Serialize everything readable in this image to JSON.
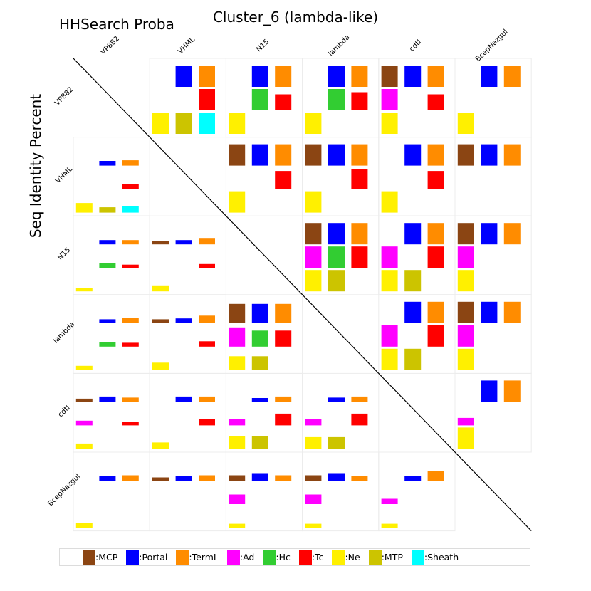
{
  "title": "Cluster_6 (lambda-like)",
  "corner_label": "HHSearch Proba",
  "ylabel": "Seq Identity Percent",
  "legend": [
    {
      "name": "MCP",
      "label": ":MCP",
      "color": "#8B4513"
    },
    {
      "name": "Portal",
      "label": ":Portal",
      "color": "#0000FF"
    },
    {
      "name": "TermL",
      "label": ":TermL",
      "color": "#FF8C00"
    },
    {
      "name": "Ad",
      "label": ":Ad",
      "color": "#FF00FF"
    },
    {
      "name": "Hc",
      "label": ":Hc",
      "color": "#32CD32"
    },
    {
      "name": "Tc",
      "label": ":Tc",
      "color": "#FF0000"
    },
    {
      "name": "Ne",
      "label": ":Ne",
      "color": "#FFF000"
    },
    {
      "name": "MTP",
      "label": ":MTP",
      "color": "#CCC400"
    },
    {
      "name": "Sheath",
      "label": ":Sheath",
      "color": "#00FFFF"
    }
  ],
  "chart_data": {
    "type": "heatmap",
    "title": "Cluster_6 (lambda-like)",
    "upper_triangle_metric": "HHSearch Proba",
    "lower_triangle_metric": "Seq Identity Percent",
    "phages": [
      "VP882",
      "VHML",
      "N15",
      "lambda",
      "cdtI",
      "BcepNazgul"
    ],
    "grid_slots": [
      [
        "MCP",
        "Portal",
        "TermL"
      ],
      [
        "Ad",
        "Hc",
        "Tc"
      ],
      [
        "Ne",
        "MTP",
        "Sheath"
      ]
    ],
    "cells": [
      {
        "row": "VP882",
        "col": "VHML",
        "values": {
          "Portal": 1.0,
          "TermL": 1.0,
          "Tc": 1.0,
          "Ne": 1.0,
          "MTP": 1.0,
          "Sheath": 1.0
        }
      },
      {
        "row": "VP882",
        "col": "N15",
        "values": {
          "Portal": 1.0,
          "TermL": 1.0,
          "Hc": 1.0,
          "Tc": 0.75,
          "Ne": 1.0
        }
      },
      {
        "row": "VP882",
        "col": "lambda",
        "values": {
          "Portal": 1.0,
          "TermL": 1.0,
          "Hc": 1.0,
          "Tc": 0.85,
          "Ne": 1.0
        }
      },
      {
        "row": "VP882",
        "col": "cdtI",
        "values": {
          "MCP": 1.0,
          "Portal": 1.0,
          "TermL": 1.0,
          "Ad": 1.0,
          "Tc": 0.75,
          "Ne": 1.0
        }
      },
      {
        "row": "VP882",
        "col": "BcepNazgul",
        "values": {
          "Portal": 1.0,
          "TermL": 1.0,
          "Ne": 1.0
        }
      },
      {
        "row": "VHML",
        "col": "N15",
        "values": {
          "MCP": 1.0,
          "Portal": 1.0,
          "TermL": 1.0,
          "Tc": 0.85,
          "Ne": 1.0
        }
      },
      {
        "row": "VHML",
        "col": "lambda",
        "values": {
          "MCP": 1.0,
          "Portal": 1.0,
          "TermL": 1.0,
          "Tc": 0.95,
          "Ne": 1.0
        }
      },
      {
        "row": "VHML",
        "col": "cdtI",
        "values": {
          "Portal": 1.0,
          "TermL": 1.0,
          "Tc": 0.85,
          "Ne": 1.0
        }
      },
      {
        "row": "VHML",
        "col": "BcepNazgul",
        "values": {
          "MCP": 1.0,
          "Portal": 1.0,
          "TermL": 1.0
        }
      },
      {
        "row": "N15",
        "col": "lambda",
        "values": {
          "MCP": 1.0,
          "Portal": 1.0,
          "TermL": 1.0,
          "Ad": 1.0,
          "Hc": 1.0,
          "Tc": 1.0,
          "Ne": 1.0,
          "MTP": 1.0
        }
      },
      {
        "row": "N15",
        "col": "cdtI",
        "values": {
          "Portal": 1.0,
          "TermL": 1.0,
          "Ad": 1.0,
          "Tc": 1.0,
          "Ne": 1.0,
          "MTP": 1.0
        }
      },
      {
        "row": "N15",
        "col": "BcepNazgul",
        "values": {
          "MCP": 1.0,
          "Portal": 1.0,
          "TermL": 1.0,
          "Ad": 1.0,
          "Ne": 1.0
        }
      },
      {
        "row": "lambda",
        "col": "cdtI",
        "values": {
          "Portal": 1.0,
          "TermL": 1.0,
          "Ad": 1.0,
          "Tc": 1.0,
          "Ne": 1.0,
          "MTP": 1.0
        }
      },
      {
        "row": "lambda",
        "col": "BcepNazgul",
        "values": {
          "MCP": 1.0,
          "Portal": 1.0,
          "TermL": 1.0,
          "Ad": 1.0,
          "Ne": 1.0
        }
      },
      {
        "row": "cdtI",
        "col": "BcepNazgul",
        "values": {
          "Portal": 1.0,
          "TermL": 1.0,
          "Ad": 0.35,
          "Ne": 1.0
        }
      },
      {
        "row": "VHML",
        "col": "VP882",
        "values": {
          "Portal": 0.22,
          "TermL": 0.25,
          "Tc": 0.22,
          "Ne": 0.45,
          "MTP": 0.25,
          "Sheath": 0.3
        }
      },
      {
        "row": "N15",
        "col": "VP882",
        "values": {
          "Portal": 0.2,
          "TermL": 0.2,
          "Hc": 0.22,
          "Tc": 0.15,
          "Ne": 0.15
        }
      },
      {
        "row": "N15",
        "col": "VHML",
        "values": {
          "MCP": 0.15,
          "Portal": 0.2,
          "TermL": 0.3,
          "Tc": 0.18,
          "Ne": 0.28
        }
      },
      {
        "row": "lambda",
        "col": "VP882",
        "values": {
          "Portal": 0.18,
          "TermL": 0.25,
          "Hc": 0.2,
          "Tc": 0.18,
          "Ne": 0.2
        }
      },
      {
        "row": "lambda",
        "col": "VHML",
        "values": {
          "MCP": 0.18,
          "Portal": 0.22,
          "TermL": 0.35,
          "Tc": 0.25,
          "Ne": 0.35
        }
      },
      {
        "row": "lambda",
        "col": "N15",
        "values": {
          "MCP": 0.9,
          "Portal": 0.9,
          "TermL": 0.9,
          "Ad": 0.9,
          "Hc": 0.75,
          "Tc": 0.75,
          "Ne": 0.65,
          "MTP": 0.65
        }
      },
      {
        "row": "cdtI",
        "col": "VP882",
        "values": {
          "MCP": 0.15,
          "Portal": 0.25,
          "TermL": 0.2,
          "Ad": 0.22,
          "Tc": 0.18,
          "Ne": 0.25
        }
      },
      {
        "row": "cdtI",
        "col": "VHML",
        "values": {
          "Portal": 0.25,
          "TermL": 0.25,
          "Tc": 0.3,
          "Ne": 0.3
        }
      },
      {
        "row": "cdtI",
        "col": "N15",
        "values": {
          "Portal": 0.18,
          "TermL": 0.25,
          "Ad": 0.28,
          "Tc": 0.55,
          "Ne": 0.6,
          "MTP": 0.6
        }
      },
      {
        "row": "cdtI",
        "col": "lambda",
        "values": {
          "Portal": 0.2,
          "TermL": 0.25,
          "Ad": 0.3,
          "Tc": 0.55,
          "Ne": 0.55,
          "MTP": 0.55
        }
      },
      {
        "row": "BcepNazgul",
        "col": "VP882",
        "values": {
          "Portal": 0.22,
          "TermL": 0.25,
          "Ne": 0.2
        }
      },
      {
        "row": "BcepNazgul",
        "col": "VHML",
        "values": {
          "MCP": 0.15,
          "Portal": 0.22,
          "TermL": 0.25
        }
      },
      {
        "row": "BcepNazgul",
        "col": "N15",
        "values": {
          "MCP": 0.25,
          "Portal": 0.35,
          "TermL": 0.25,
          "Ad": 0.45,
          "Ne": 0.18
        }
      },
      {
        "row": "BcepNazgul",
        "col": "lambda",
        "values": {
          "MCP": 0.25,
          "Portal": 0.35,
          "TermL": 0.2,
          "Ad": 0.45,
          "Ne": 0.18
        }
      },
      {
        "row": "BcepNazgul",
        "col": "cdtI",
        "values": {
          "Portal": 0.2,
          "TermL": 0.45,
          "Ad": 0.25,
          "Ne": 0.18
        }
      }
    ]
  }
}
